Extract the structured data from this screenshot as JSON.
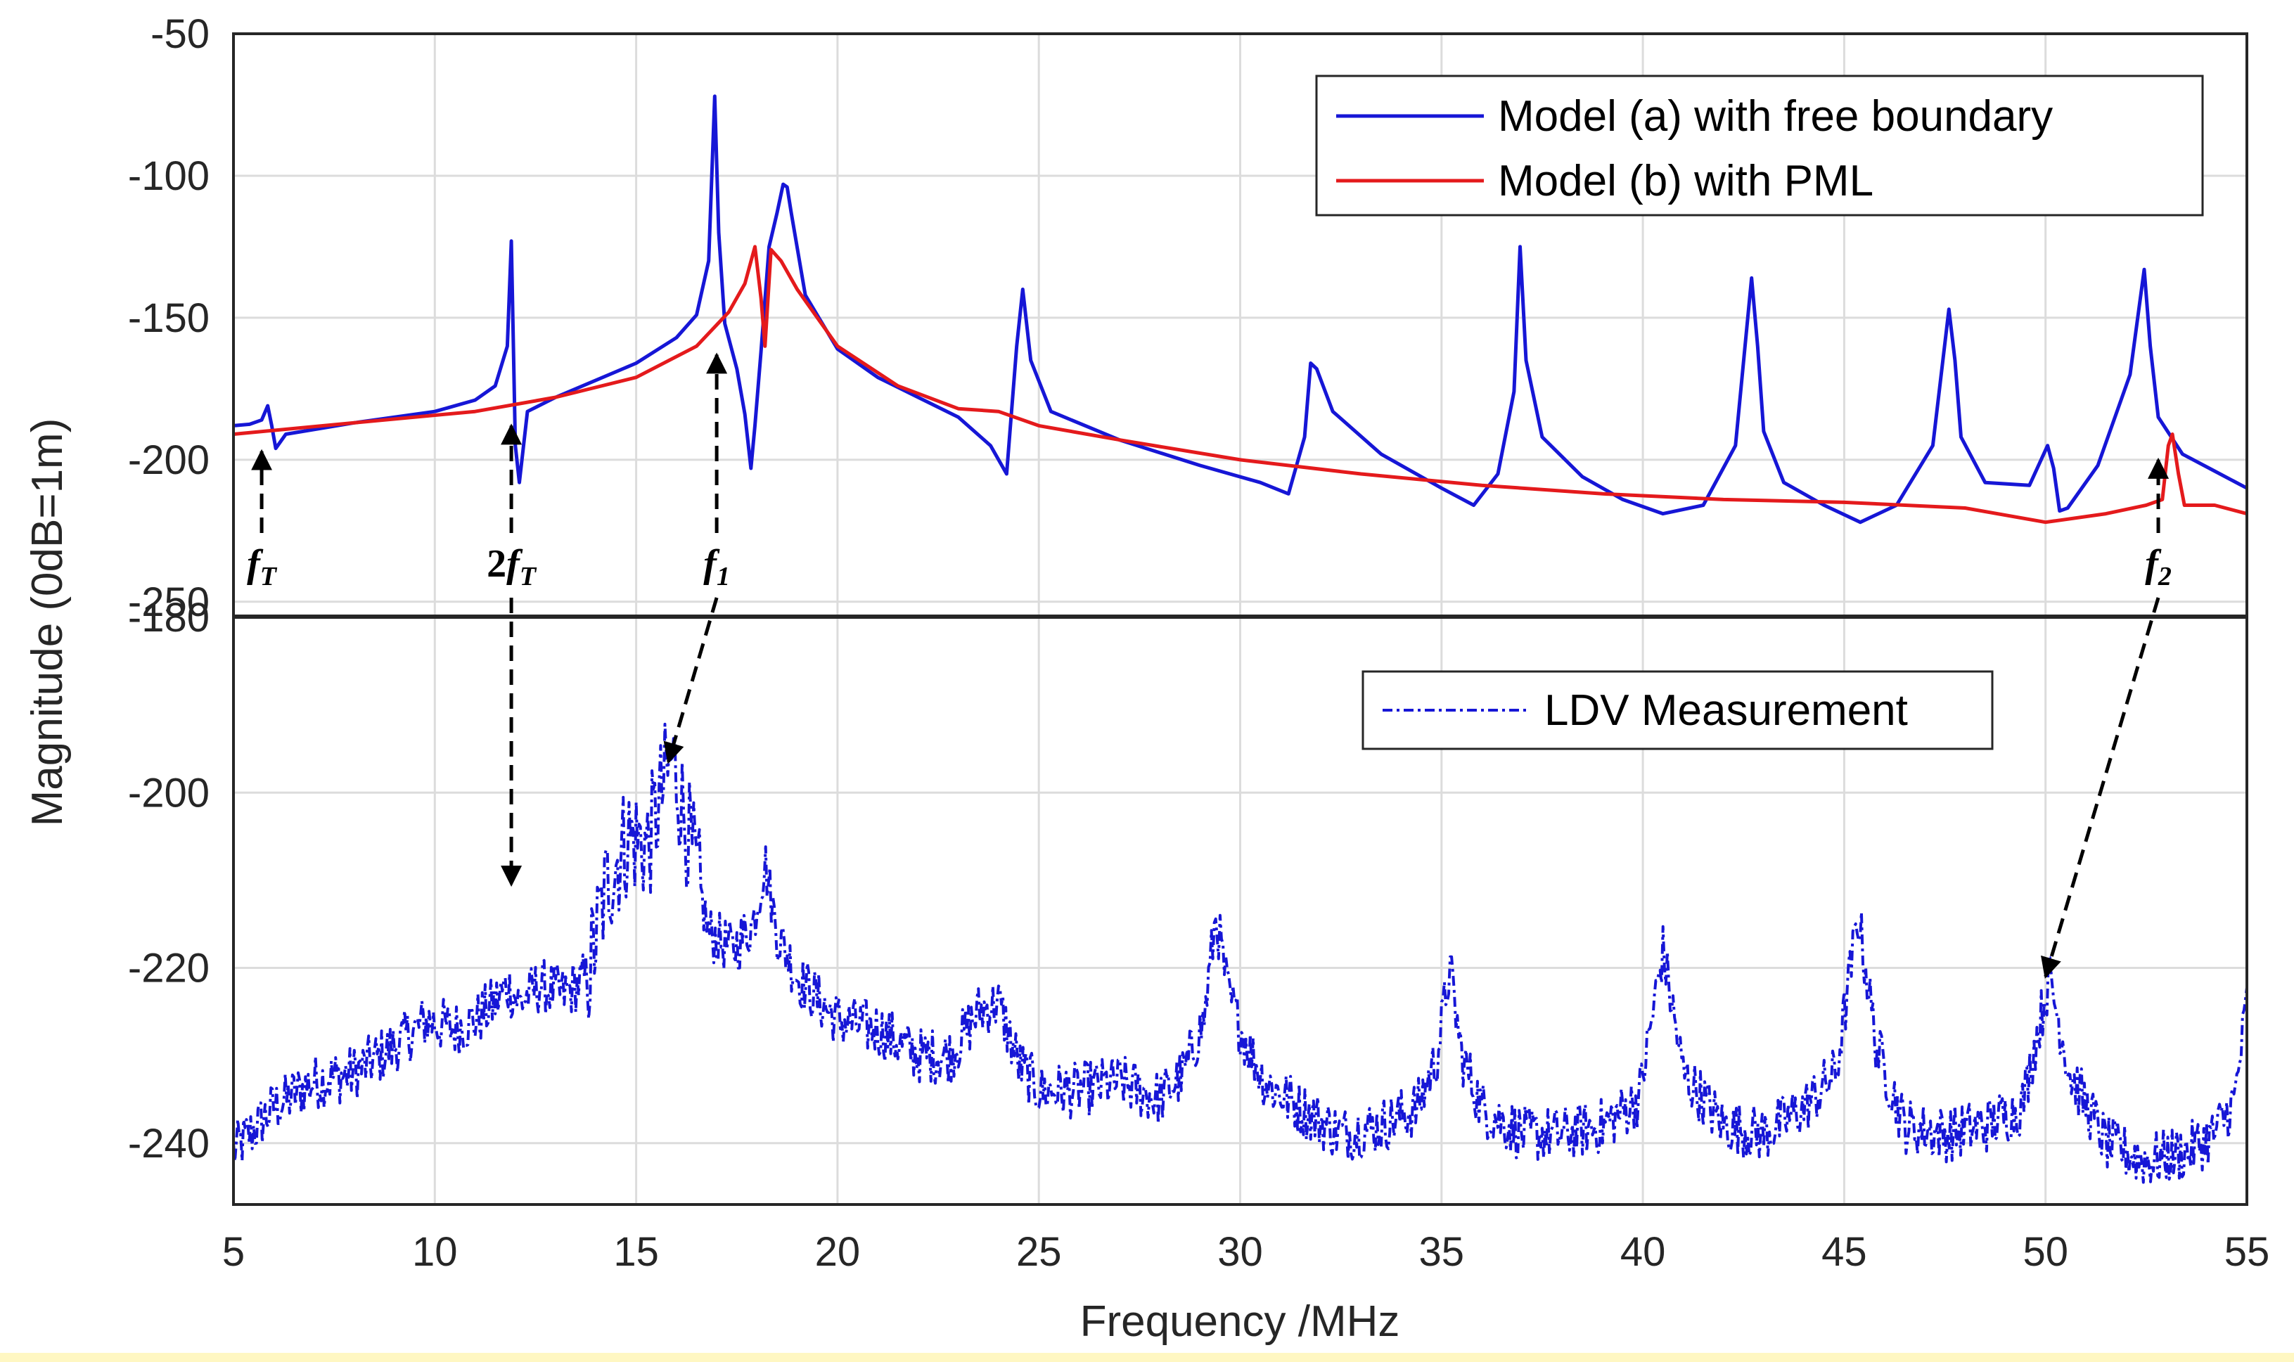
{
  "chart_data": [
    {
      "type": "line",
      "panel": "top",
      "xlabel": "Frequency /MHz",
      "ylabel": "Magnitude (0dB=1m)",
      "xlim": [
        5,
        55
      ],
      "ylim": [
        -255,
        -50
      ],
      "xticks": [
        "5",
        "10",
        "15",
        "20",
        "25",
        "30",
        "35",
        "40",
        "45",
        "50",
        "55"
      ],
      "yticks": [
        "-50",
        "-100",
        "-150",
        "-200",
        "-250"
      ],
      "grid": true,
      "legend_position": "top-right",
      "series": [
        {
          "name": "Model (a) with free boundary",
          "color": "#1616d6",
          "x": [
            5,
            5.4,
            5.7,
            5.85,
            5.95,
            6.05,
            6.3,
            8,
            10,
            11,
            11.5,
            11.8,
            11.9,
            12.0,
            12.1,
            12.3,
            13,
            14,
            15,
            16,
            16.5,
            16.8,
            16.95,
            17.05,
            17.2,
            17.5,
            17.7,
            17.85,
            17.95,
            18.1,
            18.3,
            18.5,
            18.65,
            18.75,
            18.85,
            19.2,
            20,
            21,
            22,
            23,
            23.8,
            24.2,
            24.45,
            24.6,
            24.8,
            25.3,
            27,
            29,
            30.5,
            31.2,
            31.6,
            31.75,
            31.9,
            32.3,
            33.5,
            35,
            35.8,
            36.4,
            36.8,
            36.95,
            37.1,
            37.5,
            38.5,
            39.5,
            40.5,
            41.5,
            42.3,
            42.7,
            42.85,
            43,
            43.5,
            44.5,
            45.4,
            46.3,
            47.2,
            47.6,
            47.75,
            47.9,
            48.5,
            49.6,
            50.05,
            50.2,
            50.35,
            50.55,
            51.3,
            52.1,
            52.45,
            52.6,
            52.8,
            53.4,
            54.2,
            55
          ],
          "y": [
            -188,
            -187.5,
            -186,
            -181,
            -188,
            -196,
            -191,
            -187,
            -183,
            -179,
            -174,
            -160,
            -123,
            -195,
            -208,
            -183,
            -178,
            -172,
            -166,
            -157,
            -149,
            -130,
            -72,
            -120,
            -152,
            -168,
            -184,
            -203,
            -188,
            -162,
            -125,
            -113,
            -103,
            -104,
            -113,
            -142,
            -161,
            -171,
            -178,
            -185,
            -195,
            -205,
            -160,
            -140,
            -165,
            -183,
            -193,
            -202,
            -208,
            -212,
            -192,
            -166,
            -168,
            -183,
            -198,
            -210,
            -216,
            -205,
            -176,
            -125,
            -165,
            -192,
            -206,
            -214,
            -219,
            -216,
            -195,
            -136,
            -160,
            -190,
            -208,
            -216,
            -222,
            -216,
            -195,
            -147,
            -165,
            -192,
            -208,
            -209,
            -195,
            -203,
            -218,
            -217,
            -202,
            -170,
            -133,
            -160,
            -185,
            -198,
            -204,
            -210
          ]
        },
        {
          "name": "Model (b) with PML",
          "color": "#e41a1c",
          "x": [
            5,
            8,
            11,
            13,
            15,
            16.5,
            17.3,
            17.7,
            17.95,
            18.1,
            18.2,
            18.35,
            18.6,
            19,
            20,
            21.5,
            23,
            24,
            25,
            27,
            30,
            33,
            36,
            39,
            42,
            45,
            48,
            50,
            51.5,
            52.5,
            52.9,
            53.05,
            53.15,
            53.3,
            53.45,
            54.2,
            55
          ],
          "y": [
            -191,
            -187,
            -183,
            -178,
            -171,
            -160,
            -148,
            -138,
            -125,
            -143,
            -160,
            -126,
            -130,
            -140,
            -160,
            -174,
            -182,
            -183,
            -188,
            -193,
            -200,
            -205,
            -209,
            -212,
            -214,
            -215,
            -217,
            -222,
            -219,
            -216,
            -214,
            -195,
            -191,
            -205,
            -216,
            -216,
            -219
          ]
        }
      ],
      "annotations": [
        {
          "label_italic": "f",
          "label_sub": "T",
          "prefix": "",
          "x": 5.7,
          "arrow_to_y": -197,
          "direction": "up"
        },
        {
          "label_italic": "f",
          "label_sub": "T",
          "prefix": "2",
          "x": 11.9,
          "arrow_to_y": -188,
          "direction": "up"
        },
        {
          "label_italic": "f",
          "label_sub": "1",
          "prefix": "",
          "x": 17.0,
          "arrow_to_y": -163,
          "direction": "up"
        },
        {
          "label_italic": "f",
          "label_sub": "2",
          "prefix": "",
          "x": 52.8,
          "arrow_to_y": -200,
          "direction": "up"
        }
      ]
    },
    {
      "type": "line",
      "panel": "bottom",
      "xlabel": "Frequency /MHz",
      "ylabel": "Magnitude (0dB=1m)",
      "xlim": [
        5,
        55
      ],
      "ylim": [
        -247,
        -180
      ],
      "xticks": [
        "5",
        "10",
        "15",
        "20",
        "25",
        "30",
        "35",
        "40",
        "45",
        "50",
        "55"
      ],
      "yticks": [
        "-180",
        "-200",
        "-220",
        "-240"
      ],
      "grid": true,
      "legend_position": "top-right",
      "series": [
        {
          "name": "LDV Measurement",
          "color": "#1616d6",
          "line_style": "dash-dot",
          "x": [
            5,
            6,
            7,
            8,
            9,
            9.8,
            10.5,
            11,
            11.5,
            11.8,
            12.1,
            12.6,
            13.2,
            13.8,
            14.3,
            14.8,
            15.3,
            15.7,
            15.9,
            16.3,
            16.8,
            17.4,
            17.9,
            18.2,
            18.5,
            19,
            20,
            21,
            22,
            22.8,
            23.5,
            24,
            24.5,
            25,
            26,
            27,
            28,
            28.6,
            29.1,
            29.4,
            29.7,
            30.1,
            30.6,
            31.5,
            32.5,
            33.5,
            34.4,
            34.9,
            35.2,
            35.5,
            36,
            37,
            38,
            39,
            39.9,
            40.5,
            41,
            42,
            43,
            44,
            44.8,
            45.35,
            45.8,
            46.5,
            47.5,
            48.5,
            49.4,
            50.1,
            50.6,
            51.5,
            52.5,
            53.5,
            54.2,
            54.7,
            55
          ],
          "y": [
            -241,
            -236,
            -233,
            -232,
            -229,
            -226,
            -227,
            -226,
            -224,
            -222,
            -224,
            -222,
            -223,
            -221,
            -210,
            -205,
            -206,
            -199,
            -196,
            -205,
            -216,
            -218,
            -215,
            -208,
            -216,
            -221,
            -226,
            -227,
            -230,
            -230,
            -225,
            -224,
            -231,
            -234,
            -234,
            -233,
            -235,
            -232,
            -226,
            -214,
            -223,
            -228,
            -233,
            -236,
            -239,
            -238,
            -236,
            -230,
            -220,
            -230,
            -236,
            -239,
            -239,
            -238,
            -235,
            -218,
            -232,
            -238,
            -239,
            -236,
            -232,
            -214,
            -229,
            -238,
            -239,
            -238,
            -236,
            -221,
            -232,
            -240,
            -242,
            -241,
            -239,
            -235,
            -224
          ]
        }
      ]
    }
  ]
}
